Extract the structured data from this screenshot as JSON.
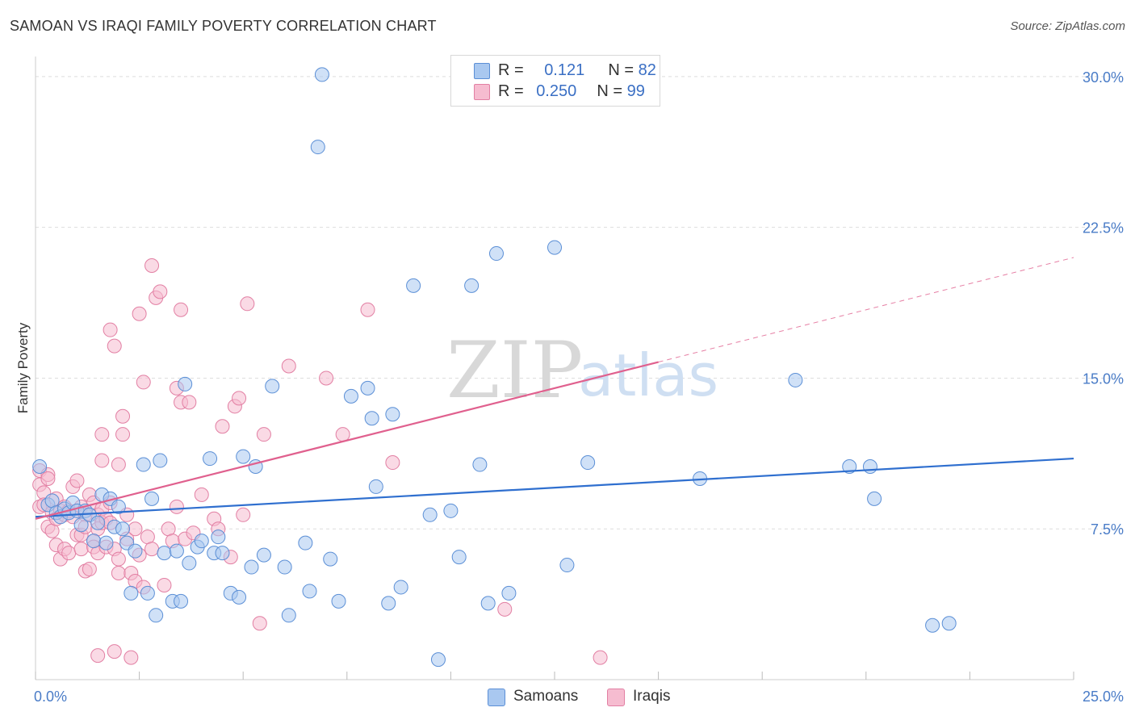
{
  "header": {
    "title": "SAMOAN VS IRAQI FAMILY POVERTY CORRELATION CHART",
    "source": "Source: ZipAtlas.com"
  },
  "legend": {
    "samoans": {
      "r_label": "R =",
      "r_value": "0.121",
      "n_label": "N =",
      "n_value": "82"
    },
    "iraqis": {
      "r_label": "R =",
      "r_value": "0.250",
      "n_label": "N =",
      "n_value": "99"
    }
  },
  "bottom_legend": {
    "samoans": "Samoans",
    "iraqis": "Iraqis"
  },
  "watermark": {
    "zip": "ZIP",
    "atlas": "atlas"
  },
  "colors": {
    "samoans_fill": "#a9c8f0",
    "samoans_stroke": "#5b8fd6",
    "samoans_line": "#2f6fcf",
    "iraqis_fill": "#f6bcd0",
    "iraqis_stroke": "#e27fa3",
    "iraqis_line": "#e0608e",
    "grid": "#dddddd",
    "tick_text": "#4a7cc7"
  },
  "chart_data": {
    "type": "scatter",
    "title": "SAMOAN VS IRAQI FAMILY POVERTY CORRELATION CHART",
    "xlabel": "",
    "ylabel": "Family Poverty",
    "xlim": [
      0,
      25
    ],
    "ylim": [
      0,
      31
    ],
    "x_tick_labels": [
      "0.0%",
      "25.0%"
    ],
    "y_ticks": [
      7.5,
      15.0,
      22.5,
      30.0
    ],
    "y_tick_labels": [
      "7.5%",
      "15.0%",
      "22.5%",
      "30.0%"
    ],
    "grid": true,
    "legend_position": "top-center",
    "series": [
      {
        "name": "Samoans",
        "r": 0.121,
        "n": 82,
        "trend": {
          "x": [
            0,
            25
          ],
          "y": [
            8.1,
            11.0
          ],
          "style": "solid"
        },
        "points": [
          [
            0.1,
            10.6
          ],
          [
            0.3,
            8.7
          ],
          [
            0.4,
            8.9
          ],
          [
            0.5,
            8.3
          ],
          [
            0.6,
            8.1
          ],
          [
            0.7,
            8.5
          ],
          [
            0.8,
            8.3
          ],
          [
            0.9,
            8.8
          ],
          [
            1.0,
            8.4
          ],
          [
            1.1,
            7.7
          ],
          [
            1.2,
            8.4
          ],
          [
            1.3,
            8.2
          ],
          [
            1.4,
            6.9
          ],
          [
            1.5,
            7.8
          ],
          [
            1.6,
            9.2
          ],
          [
            1.7,
            6.8
          ],
          [
            1.8,
            9.0
          ],
          [
            1.9,
            7.6
          ],
          [
            2.0,
            8.6
          ],
          [
            2.1,
            7.5
          ],
          [
            2.2,
            6.8
          ],
          [
            2.3,
            4.3
          ],
          [
            2.4,
            6.4
          ],
          [
            2.6,
            10.7
          ],
          [
            2.7,
            4.3
          ],
          [
            2.8,
            9.0
          ],
          [
            2.9,
            3.2
          ],
          [
            3.0,
            10.9
          ],
          [
            3.1,
            6.3
          ],
          [
            3.3,
            3.9
          ],
          [
            3.4,
            6.4
          ],
          [
            3.5,
            3.9
          ],
          [
            3.6,
            14.7
          ],
          [
            3.7,
            5.8
          ],
          [
            3.9,
            6.6
          ],
          [
            4.0,
            6.9
          ],
          [
            4.2,
            11.0
          ],
          [
            4.3,
            6.3
          ],
          [
            4.4,
            7.1
          ],
          [
            4.5,
            6.3
          ],
          [
            4.7,
            4.3
          ],
          [
            4.9,
            4.1
          ],
          [
            5.0,
            11.1
          ],
          [
            5.2,
            5.6
          ],
          [
            5.3,
            10.6
          ],
          [
            5.5,
            6.2
          ],
          [
            5.7,
            14.6
          ],
          [
            6.0,
            5.6
          ],
          [
            6.1,
            3.2
          ],
          [
            6.5,
            6.8
          ],
          [
            6.6,
            4.4
          ],
          [
            6.8,
            26.5
          ],
          [
            6.9,
            30.1
          ],
          [
            7.1,
            6.0
          ],
          [
            7.3,
            3.9
          ],
          [
            7.6,
            14.1
          ],
          [
            8.0,
            14.5
          ],
          [
            8.1,
            13.0
          ],
          [
            8.2,
            9.6
          ],
          [
            8.5,
            3.8
          ],
          [
            8.6,
            13.2
          ],
          [
            8.8,
            4.6
          ],
          [
            9.1,
            19.6
          ],
          [
            9.7,
            1.0
          ],
          [
            9.5,
            8.2
          ],
          [
            10.0,
            8.4
          ],
          [
            10.2,
            6.1
          ],
          [
            10.5,
            19.6
          ],
          [
            10.7,
            10.7
          ],
          [
            10.9,
            3.8
          ],
          [
            11.1,
            21.2
          ],
          [
            11.4,
            4.3
          ],
          [
            12.5,
            21.5
          ],
          [
            12.8,
            5.7
          ],
          [
            13.3,
            10.8
          ],
          [
            16.0,
            10.0
          ],
          [
            18.3,
            14.9
          ],
          [
            19.6,
            10.6
          ],
          [
            20.1,
            10.6
          ],
          [
            20.2,
            9.0
          ],
          [
            21.6,
            2.7
          ],
          [
            22.0,
            2.8
          ]
        ]
      },
      {
        "name": "Iraqis",
        "r": 0.25,
        "n": 99,
        "trend": {
          "x": [
            0,
            15
          ],
          "y": [
            8.0,
            15.8
          ],
          "style": "solid",
          "extension": {
            "x": [
              15,
              25
            ],
            "y": [
              15.8,
              21.0
            ],
            "style": "dashed"
          }
        },
        "points": [
          [
            0.1,
            10.4
          ],
          [
            0.1,
            9.7
          ],
          [
            0.1,
            8.6
          ],
          [
            0.2,
            9.3
          ],
          [
            0.2,
            8.7
          ],
          [
            0.3,
            10.2
          ],
          [
            0.3,
            10.0
          ],
          [
            0.3,
            7.6
          ],
          [
            0.4,
            8.3
          ],
          [
            0.4,
            7.4
          ],
          [
            0.5,
            9.0
          ],
          [
            0.5,
            8.0
          ],
          [
            0.5,
            6.7
          ],
          [
            0.6,
            8.4
          ],
          [
            0.6,
            6.0
          ],
          [
            0.7,
            8.6
          ],
          [
            0.7,
            8.2
          ],
          [
            0.7,
            6.5
          ],
          [
            0.8,
            6.3
          ],
          [
            0.8,
            8.4
          ],
          [
            0.9,
            8.1
          ],
          [
            0.9,
            9.6
          ],
          [
            1.0,
            9.9
          ],
          [
            1.0,
            7.2
          ],
          [
            1.1,
            8.6
          ],
          [
            1.1,
            7.2
          ],
          [
            1.1,
            6.5
          ],
          [
            1.2,
            8.2
          ],
          [
            1.2,
            5.4
          ],
          [
            1.2,
            7.6
          ],
          [
            1.3,
            5.5
          ],
          [
            1.3,
            9.2
          ],
          [
            1.4,
            6.9
          ],
          [
            1.4,
            6.6
          ],
          [
            1.4,
            8.8
          ],
          [
            1.5,
            8.2
          ],
          [
            1.5,
            7.5
          ],
          [
            1.5,
            6.3
          ],
          [
            1.5,
            1.2
          ],
          [
            1.6,
            8.5
          ],
          [
            1.6,
            7.8
          ],
          [
            1.6,
            10.9
          ],
          [
            1.6,
            12.2
          ],
          [
            1.7,
            6.6
          ],
          [
            1.7,
            8.0
          ],
          [
            1.8,
            8.8
          ],
          [
            1.8,
            7.8
          ],
          [
            1.8,
            17.4
          ],
          [
            1.9,
            6.5
          ],
          [
            1.9,
            16.6
          ],
          [
            1.9,
            1.4
          ],
          [
            2.0,
            5.3
          ],
          [
            2.0,
            6.0
          ],
          [
            2.0,
            10.7
          ],
          [
            2.1,
            12.2
          ],
          [
            2.1,
            13.1
          ],
          [
            2.2,
            8.2
          ],
          [
            2.2,
            7.0
          ],
          [
            2.3,
            5.3
          ],
          [
            2.3,
            1.1
          ],
          [
            2.4,
            7.5
          ],
          [
            2.4,
            4.9
          ],
          [
            2.5,
            18.2
          ],
          [
            2.5,
            6.2
          ],
          [
            2.6,
            14.8
          ],
          [
            2.6,
            4.6
          ],
          [
            2.7,
            7.1
          ],
          [
            2.8,
            20.6
          ],
          [
            2.8,
            6.5
          ],
          [
            2.9,
            19.0
          ],
          [
            3.0,
            19.3
          ],
          [
            3.1,
            4.7
          ],
          [
            3.2,
            7.5
          ],
          [
            3.3,
            6.9
          ],
          [
            3.4,
            8.6
          ],
          [
            3.4,
            14.5
          ],
          [
            3.5,
            13.8
          ],
          [
            3.5,
            18.4
          ],
          [
            3.6,
            7.0
          ],
          [
            3.7,
            13.8
          ],
          [
            3.8,
            7.3
          ],
          [
            4.0,
            9.2
          ],
          [
            4.3,
            8.0
          ],
          [
            4.4,
            7.5
          ],
          [
            4.5,
            12.6
          ],
          [
            4.7,
            6.1
          ],
          [
            4.8,
            13.6
          ],
          [
            4.9,
            14.0
          ],
          [
            5.0,
            8.2
          ],
          [
            5.1,
            18.7
          ],
          [
            5.4,
            2.8
          ],
          [
            5.5,
            12.2
          ],
          [
            6.1,
            15.6
          ],
          [
            7.0,
            15.0
          ],
          [
            7.4,
            12.2
          ],
          [
            8.0,
            18.4
          ],
          [
            8.6,
            10.8
          ],
          [
            11.3,
            3.5
          ],
          [
            13.6,
            1.1
          ]
        ]
      }
    ]
  }
}
